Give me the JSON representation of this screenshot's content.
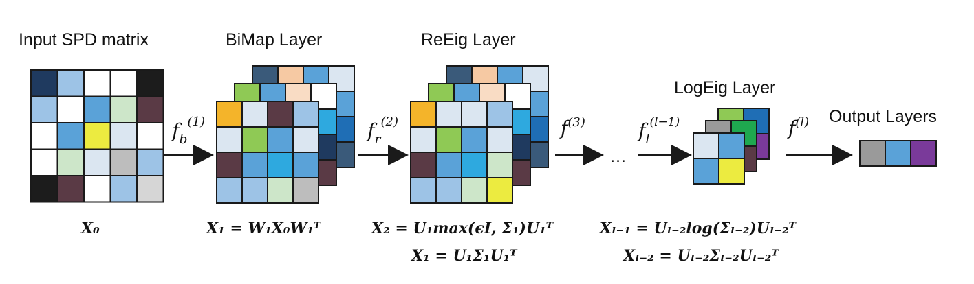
{
  "labels": {
    "input": "Input SPD matrix",
    "bimap": "BiMap Layer",
    "reeig": "ReEig Layer",
    "logeig": "LogEig Layer",
    "output": "Output Layers"
  },
  "functions": {
    "fb": "f",
    "fb_sub": "b",
    "fb_sup": "(1)",
    "fr": "f",
    "fr_sub": "r",
    "fr_sup": "(2)",
    "f3": "f",
    "f3_sup": "(3)",
    "ellipsis": "…",
    "fl": "f",
    "fl_sub": "l",
    "fl_sup": "(l−1)",
    "fL": "f",
    "fL_sup": "(l)"
  },
  "formulas": {
    "x0": "X₀",
    "bimap": "X₁ = W₁X₀W₁ᵀ",
    "reeig_1": "X₂ = U₁max(ϵI, Σ₁)U₁ᵀ",
    "reeig_2": "X₁ = U₁Σ₁U₁ᵀ",
    "logeig_1": "Xₗ₋₁ = Uₗ₋₂log(Σₗ₋₂)Uₗ₋₂ᵀ",
    "logeig_2": "Xₗ₋₂ = Uₗ₋₂Σₗ₋₂Uₗ₋₂ᵀ"
  },
  "colors": {
    "navy": "#1f3a5f",
    "light_blue": "#9dc3e6",
    "medium_blue": "#5aa2d8",
    "sky": "#2ea9df",
    "pale_blue": "#dbe6f1",
    "pale_green": "#cde6c9",
    "green": "#8fc955",
    "dark_green": "#1fa84f",
    "yellow": "#eceb40",
    "orange": "#f4b42a",
    "peach": "#f6c9a3",
    "pale_peach": "#f9dcc4",
    "maroon": "#5a3a45",
    "black": "#1c1c1c",
    "grey": "#bdbdbd",
    "light_grey": "#d6d6d6",
    "dark_grey": "#9a9a9a",
    "slate": "#3a5a7a",
    "purple": "#7a3a9a",
    "blue": "#1f6eb5",
    "white": "#ffffff"
  }
}
